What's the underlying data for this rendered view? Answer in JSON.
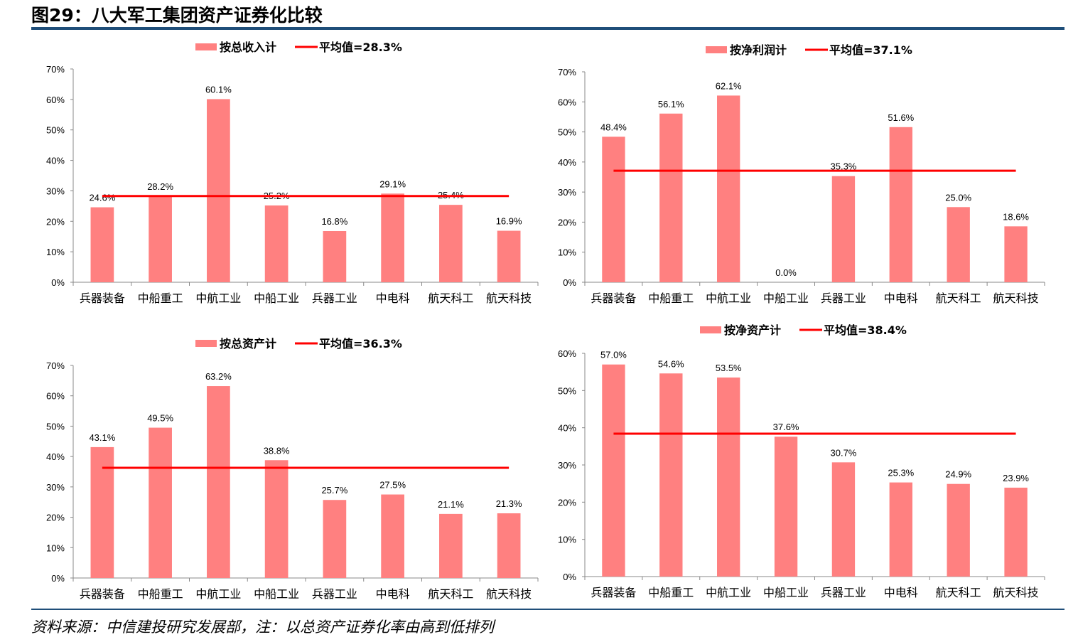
{
  "title": "图29：八大军工集团资产证券化比较",
  "footer": "资料来源：中信建投研究发展部，注：以总资产证券化率由高到低排列",
  "colors": {
    "bar": "#FF8080",
    "average_line": "#FF0000",
    "rule": "#1F4E79"
  },
  "chart_data": [
    {
      "type": "bar",
      "legend_bar": "按总收入计",
      "legend_line": "平均值=28.3%",
      "average": 28.3,
      "categories": [
        "兵器装备",
        "中船重工",
        "中航工业",
        "中船工业",
        "兵器工业",
        "中电科",
        "航天科工",
        "航天科技"
      ],
      "values": [
        24.6,
        28.2,
        60.1,
        25.2,
        16.8,
        29.1,
        25.4,
        16.9
      ],
      "ylim": [
        0,
        70
      ],
      "yticks": [
        0,
        10,
        20,
        30,
        40,
        50,
        60,
        70
      ],
      "unit": "%",
      "legend_placement": "top",
      "grid": false
    },
    {
      "type": "bar",
      "legend_bar": "按净利润计",
      "legend_line": "平均值=37.1%",
      "average": 37.1,
      "categories": [
        "兵器装备",
        "中船重工",
        "中航工业",
        "中船工业",
        "兵器工业",
        "中电科",
        "航天科工",
        "航天科技"
      ],
      "values": [
        48.4,
        56.1,
        62.1,
        0.0,
        35.3,
        51.6,
        25.0,
        18.6
      ],
      "ylim": [
        0,
        70
      ],
      "yticks": [
        0,
        10,
        20,
        30,
        40,
        50,
        60,
        70
      ],
      "unit": "%",
      "legend_placement": "top",
      "grid": false
    },
    {
      "type": "bar",
      "legend_bar": "按总资产计",
      "legend_line": "平均值=36.3%",
      "average": 36.3,
      "categories": [
        "兵器装备",
        "中船重工",
        "中航工业",
        "中船工业",
        "兵器工业",
        "中电科",
        "航天科工",
        "航天科技"
      ],
      "values": [
        43.1,
        49.5,
        63.2,
        38.8,
        25.7,
        27.5,
        21.1,
        21.3
      ],
      "ylim": [
        0,
        70
      ],
      "yticks": [
        0,
        10,
        20,
        30,
        40,
        50,
        60,
        70
      ],
      "unit": "%",
      "legend_placement": "top",
      "grid": false
    },
    {
      "type": "bar",
      "legend_bar": "按净资产计",
      "legend_line": "平均值=38.4%",
      "average": 38.4,
      "categories": [
        "兵器装备",
        "中船重工",
        "中航工业",
        "中船工业",
        "兵器工业",
        "中电科",
        "航天科工",
        "航天科技"
      ],
      "values": [
        57.0,
        54.6,
        53.5,
        37.6,
        30.7,
        25.3,
        24.9,
        23.9
      ],
      "ylim": [
        0,
        60
      ],
      "yticks": [
        0,
        10,
        20,
        30,
        40,
        50,
        60
      ],
      "unit": "%",
      "legend_placement": "top",
      "grid": false
    }
  ]
}
